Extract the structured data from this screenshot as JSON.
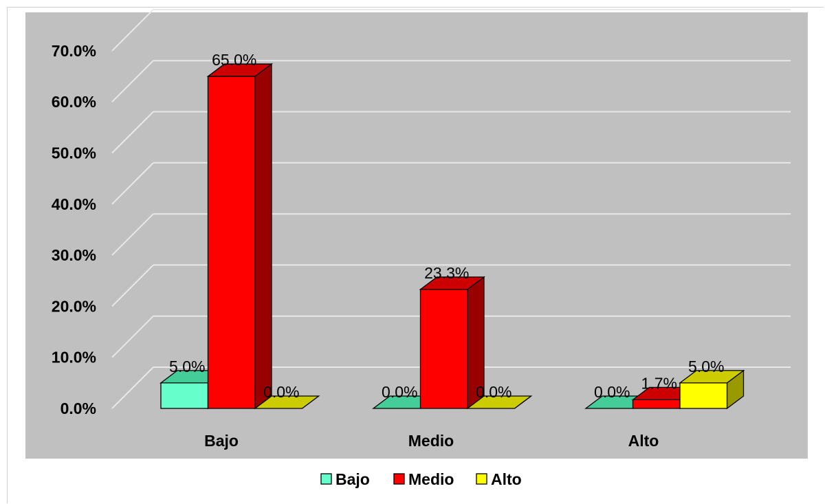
{
  "chart_data": {
    "type": "bar",
    "categories": [
      "Bajo",
      "Medio",
      "Alto"
    ],
    "series": [
      {
        "name": "Bajo",
        "values": [
          5.0,
          0.0,
          0.0
        ],
        "color": "#66ffcc",
        "side_color": "#33aa88",
        "top_color": "#44cc99"
      },
      {
        "name": "Medio",
        "values": [
          65.0,
          23.3,
          1.7
        ],
        "color": "#ff0000",
        "side_color": "#990000",
        "top_color": "#cc0000"
      },
      {
        "name": "Alto",
        "values": [
          0.0,
          0.0,
          5.0
        ],
        "color": "#ffff00",
        "side_color": "#999900",
        "top_color": "#cccc00"
      }
    ],
    "data_labels": [
      [
        "5.0%",
        "0.0%",
        "0.0%"
      ],
      [
        "65.0%",
        "23.3%",
        "1.7%"
      ],
      [
        "0.0%",
        "0.0%",
        "5.0%"
      ]
    ],
    "yticks": [
      0,
      10,
      20,
      30,
      40,
      50,
      60,
      70
    ],
    "ytick_labels": [
      "0.0%",
      "10.0%",
      "20.0%",
      "30.0%",
      "40.0%",
      "50.0%",
      "60.0%",
      "70.0%"
    ],
    "ylim": [
      0,
      70
    ],
    "grid": true,
    "legend": "bottom",
    "plot_background": "#c0c0c0",
    "title": "",
    "xlabel": "",
    "ylabel": ""
  }
}
